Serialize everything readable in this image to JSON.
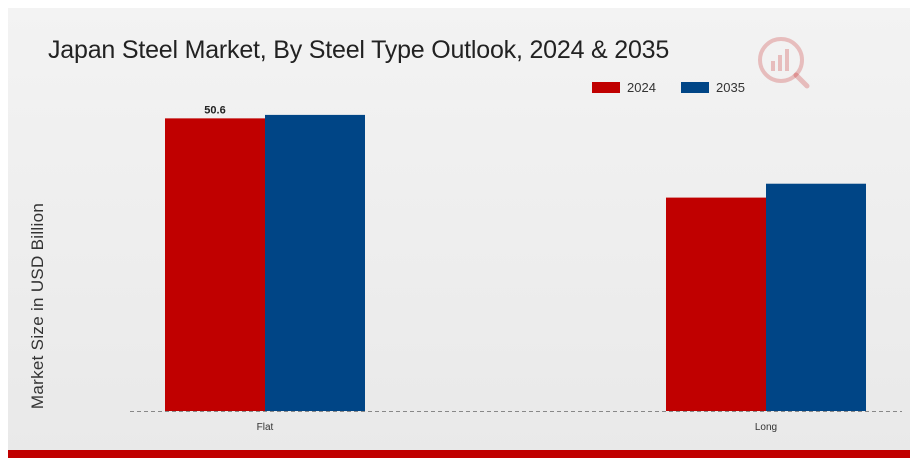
{
  "chart_data": {
    "type": "bar",
    "title": "Japan Steel Market, By Steel Type Outlook, 2024 & 2035",
    "xlabel": "",
    "ylabel": "Market Size in USD Billion",
    "categories": [
      "Flat",
      "Long"
    ],
    "series": [
      {
        "name": "2024",
        "color": "#c00000",
        "values": [
          50.6,
          36.9
        ]
      },
      {
        "name": "2035",
        "color": "#004586",
        "values": [
          51.2,
          39.3
        ]
      }
    ],
    "data_labels": [
      {
        "series": 0,
        "category": 0,
        "text": "50.6"
      }
    ],
    "ylim": [
      0,
      60
    ],
    "grid": false,
    "legend_position": "top-right"
  },
  "logo": {
    "icon": "market-research-logo-icon",
    "color": "#c00000"
  }
}
